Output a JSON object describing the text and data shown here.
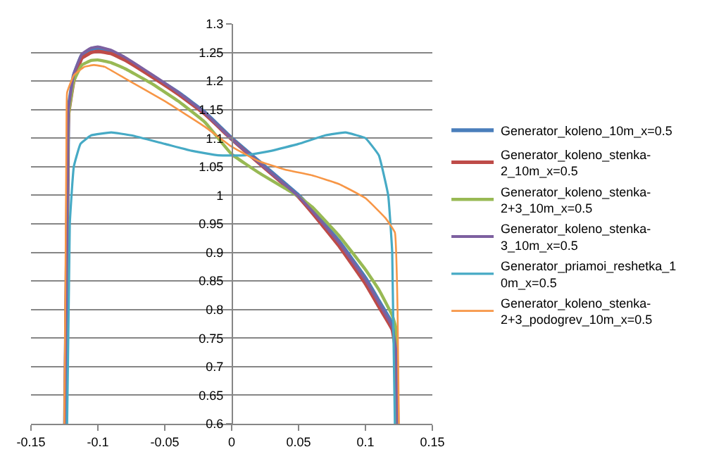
{
  "chart_data": {
    "type": "line",
    "xlim": [
      -0.15,
      0.15
    ],
    "xticks": [
      -0.15,
      -0.1,
      -0.05,
      0,
      0.05,
      0.1,
      0.15
    ],
    "ylim": [
      0.6,
      1.3
    ],
    "yticks": [
      0.6,
      0.65,
      0.7,
      0.75,
      0.8,
      0.85,
      0.9,
      0.95,
      1,
      1.05,
      1.1,
      1.15,
      1.2,
      1.25,
      1.3
    ],
    "grid": "y",
    "legend": "right",
    "marker": "none",
    "line_style": "solid",
    "series": [
      {
        "name": "Generator_koleno_10m_x=0.5",
        "color": "#4a7ebb",
        "x": [
          -0.1245,
          -0.1225,
          -0.122,
          -0.118,
          -0.112,
          -0.105,
          -0.1,
          -0.09,
          -0.08,
          -0.06,
          -0.04,
          -0.02,
          0,
          0.02,
          0.04,
          0.05,
          0.06,
          0.08,
          0.1,
          0.11,
          0.12,
          0.123,
          0.124
        ],
        "values": [
          0.6,
          1.05,
          1.15,
          1.21,
          1.245,
          1.256,
          1.258,
          1.252,
          1.24,
          1.21,
          1.18,
          1.145,
          1.1,
          1.06,
          1.02,
          1.0,
          0.975,
          0.92,
          0.855,
          0.815,
          0.775,
          0.73,
          0.6
        ]
      },
      {
        "name": "Generator_koleno_stenka-2_10m_x=0.5",
        "color": "#be4b48",
        "x": [
          -0.1245,
          -0.1225,
          -0.122,
          -0.118,
          -0.112,
          -0.105,
          -0.1,
          -0.09,
          -0.08,
          -0.06,
          -0.04,
          -0.02,
          0,
          0.02,
          0.04,
          0.05,
          0.06,
          0.08,
          0.1,
          0.11,
          0.12,
          0.123,
          0.124
        ],
        "values": [
          0.6,
          1.05,
          1.14,
          1.2,
          1.24,
          1.25,
          1.252,
          1.248,
          1.237,
          1.208,
          1.177,
          1.142,
          1.098,
          1.057,
          1.017,
          0.997,
          0.97,
          0.912,
          0.845,
          0.805,
          0.765,
          0.72,
          0.6
        ]
      },
      {
        "name": "Generator_koleno_stenka-2+3_10m_x=0.5",
        "color": "#98b954",
        "x": [
          -0.1245,
          -0.1225,
          -0.122,
          -0.118,
          -0.112,
          -0.105,
          -0.1,
          -0.09,
          -0.08,
          -0.06,
          -0.04,
          -0.02,
          0,
          0.02,
          0.04,
          0.05,
          0.06,
          0.08,
          0.1,
          0.11,
          0.12,
          0.123,
          0.124
        ],
        "values": [
          0.6,
          1.05,
          1.14,
          1.2,
          1.228,
          1.236,
          1.237,
          1.232,
          1.222,
          1.196,
          1.165,
          1.128,
          1.072,
          1.04,
          1.012,
          0.998,
          0.98,
          0.93,
          0.87,
          0.835,
          0.79,
          0.765,
          0.6
        ]
      },
      {
        "name": "Generator_koleno_stenka-3_10m_x=0.5",
        "color": "#7d60a0",
        "x": [
          -0.1245,
          -0.1225,
          -0.122,
          -0.118,
          -0.112,
          -0.105,
          -0.1,
          -0.09,
          -0.08,
          -0.06,
          -0.04,
          -0.02,
          0,
          0.02,
          0.04,
          0.05,
          0.06,
          0.08,
          0.1,
          0.11,
          0.12,
          0.123,
          0.124
        ],
        "values": [
          0.6,
          1.05,
          1.15,
          1.212,
          1.247,
          1.258,
          1.26,
          1.254,
          1.242,
          1.212,
          1.18,
          1.144,
          1.098,
          1.058,
          1.018,
          0.998,
          0.973,
          0.918,
          0.852,
          0.812,
          0.77,
          0.725,
          0.6
        ]
      },
      {
        "name": "Generator_priamoi_reshetka_10m_x=0.5",
        "color": "#46aac5",
        "x": [
          -0.123,
          -0.121,
          -0.118,
          -0.113,
          -0.105,
          -0.09,
          -0.075,
          -0.05,
          -0.03,
          -0.01,
          0.01,
          0.03,
          0.05,
          0.07,
          0.085,
          0.1,
          0.11,
          0.117,
          0.12,
          0.122
        ],
        "values": [
          0.6,
          0.95,
          1.05,
          1.09,
          1.105,
          1.11,
          1.105,
          1.09,
          1.078,
          1.07,
          1.07,
          1.078,
          1.09,
          1.105,
          1.11,
          1.1,
          1.07,
          1.0,
          0.9,
          0.6
        ]
      },
      {
        "name": "Generator_koleno_stenka-2+3_podogrev_10m_x=0.5",
        "color": "#f79646",
        "x": [
          -0.125,
          -0.1235,
          -0.123,
          -0.118,
          -0.11,
          -0.103,
          -0.095,
          -0.08,
          -0.05,
          -0.02,
          0,
          0.02,
          0.04,
          0.06,
          0.08,
          0.1,
          0.115,
          0.122,
          0.124,
          0.125
        ],
        "values": [
          0.6,
          1.1,
          1.18,
          1.21,
          1.225,
          1.228,
          1.225,
          1.205,
          1.165,
          1.12,
          1.085,
          1.06,
          1.045,
          1.035,
          1.02,
          0.995,
          0.96,
          0.935,
          0.8,
          0.6
        ]
      }
    ]
  }
}
